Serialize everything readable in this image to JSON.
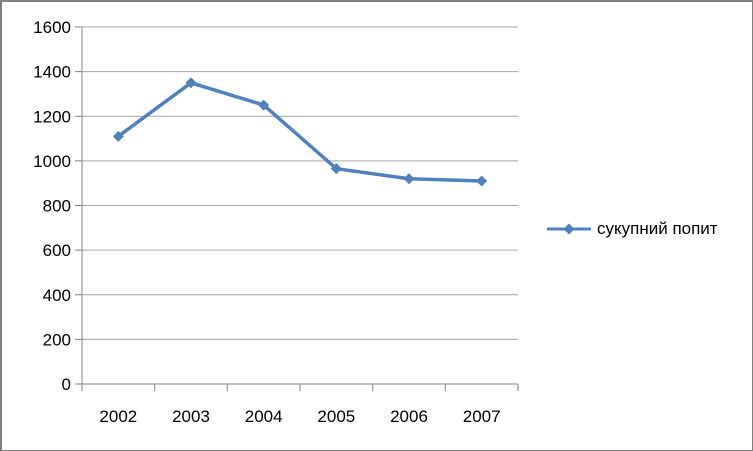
{
  "chart_data": {
    "type": "line",
    "categories": [
      "2002",
      "2003",
      "2004",
      "2005",
      "2006",
      "2007"
    ],
    "series": [
      {
        "name": "сукупний попит",
        "values": [
          1110,
          1350,
          1250,
          965,
          920,
          910
        ]
      }
    ],
    "title": "",
    "xlabel": "",
    "ylabel": "",
    "ylim": [
      0,
      1600
    ],
    "yticks": [
      0,
      200,
      400,
      600,
      800,
      1000,
      1200,
      1400,
      1600
    ],
    "grid": true,
    "legend_position": "right",
    "marker": "diamond",
    "colors": {
      "series": "#4f81bd",
      "gridline": "#a6a6a6",
      "axis": "#808080",
      "tick_text": "#000000",
      "frame_border": "#808080",
      "background": "#ffffff"
    }
  }
}
